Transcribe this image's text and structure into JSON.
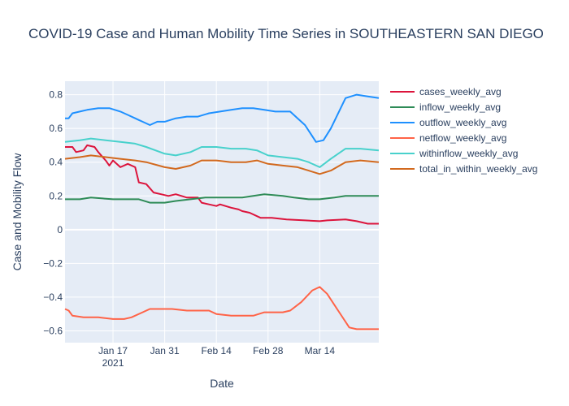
{
  "chart_data": {
    "type": "line",
    "title": "COVID-19 Case and Human Mobility Time Series in SOUTHEASTERN SAN DIEGO",
    "xlabel": "Date",
    "ylabel": "Case and Mobility Flow",
    "x_start": "2021-01-04",
    "x_end": "2021-03-30",
    "xticks": [
      {
        "date": "2021-01-17",
        "label": "Jan 17",
        "sublabel": "2021"
      },
      {
        "date": "2021-01-31",
        "label": "Jan 31",
        "sublabel": ""
      },
      {
        "date": "2021-02-14",
        "label": "Feb 14",
        "sublabel": ""
      },
      {
        "date": "2021-02-28",
        "label": "Feb 28",
        "sublabel": ""
      },
      {
        "date": "2021-03-14",
        "label": "Mar 14",
        "sublabel": ""
      }
    ],
    "ylim": [
      -0.67,
      0.88
    ],
    "yticks": [
      -0.6,
      -0.4,
      -0.2,
      0,
      0.2,
      0.4,
      0.6,
      0.8
    ],
    "ytick_labels": [
      "−0.6",
      "−0.4",
      "−0.2",
      "0",
      "0.2",
      "0.4",
      "0.6",
      "0.8"
    ],
    "grid": true,
    "legend_position": "right",
    "series": [
      {
        "name": "cases_weekly_avg",
        "color": "#dc143c",
        "points": [
          [
            "2021-01-04",
            0.49
          ],
          [
            "2021-01-06",
            0.49
          ],
          [
            "2021-01-07",
            0.46
          ],
          [
            "2021-01-09",
            0.47
          ],
          [
            "2021-01-10",
            0.5
          ],
          [
            "2021-01-12",
            0.49
          ],
          [
            "2021-01-13",
            0.46
          ],
          [
            "2021-01-15",
            0.41
          ],
          [
            "2021-01-16",
            0.38
          ],
          [
            "2021-01-17",
            0.41
          ],
          [
            "2021-01-19",
            0.37
          ],
          [
            "2021-01-21",
            0.39
          ],
          [
            "2021-01-23",
            0.37
          ],
          [
            "2021-01-24",
            0.28
          ],
          [
            "2021-01-26",
            0.27
          ],
          [
            "2021-01-28",
            0.22
          ],
          [
            "2021-01-30",
            0.21
          ],
          [
            "2021-02-01",
            0.2
          ],
          [
            "2021-02-03",
            0.21
          ],
          [
            "2021-02-06",
            0.19
          ],
          [
            "2021-02-09",
            0.19
          ],
          [
            "2021-02-10",
            0.16
          ],
          [
            "2021-02-12",
            0.15
          ],
          [
            "2021-02-14",
            0.14
          ],
          [
            "2021-02-15",
            0.15
          ],
          [
            "2021-02-18",
            0.13
          ],
          [
            "2021-02-20",
            0.12
          ],
          [
            "2021-02-21",
            0.11
          ],
          [
            "2021-02-23",
            0.1
          ],
          [
            "2021-02-26",
            0.07
          ],
          [
            "2021-03-01",
            0.07
          ],
          [
            "2021-03-05",
            0.06
          ],
          [
            "2021-03-10",
            0.055
          ],
          [
            "2021-03-14",
            0.05
          ],
          [
            "2021-03-16",
            0.055
          ],
          [
            "2021-03-21",
            0.06
          ],
          [
            "2021-03-24",
            0.05
          ],
          [
            "2021-03-27",
            0.035
          ],
          [
            "2021-03-30",
            0.035
          ]
        ]
      },
      {
        "name": "inflow_weekly_avg",
        "color": "#2e8b57",
        "points": [
          [
            "2021-01-04",
            0.18
          ],
          [
            "2021-01-08",
            0.18
          ],
          [
            "2021-01-11",
            0.19
          ],
          [
            "2021-01-17",
            0.18
          ],
          [
            "2021-01-20",
            0.18
          ],
          [
            "2021-01-24",
            0.18
          ],
          [
            "2021-01-27",
            0.16
          ],
          [
            "2021-01-31",
            0.16
          ],
          [
            "2021-02-03",
            0.17
          ],
          [
            "2021-02-07",
            0.18
          ],
          [
            "2021-02-11",
            0.19
          ],
          [
            "2021-02-15",
            0.19
          ],
          [
            "2021-02-21",
            0.19
          ],
          [
            "2021-02-24",
            0.2
          ],
          [
            "2021-02-27",
            0.21
          ],
          [
            "2021-03-04",
            0.2
          ],
          [
            "2021-03-07",
            0.19
          ],
          [
            "2021-03-11",
            0.18
          ],
          [
            "2021-03-14",
            0.18
          ],
          [
            "2021-03-18",
            0.19
          ],
          [
            "2021-03-21",
            0.2
          ],
          [
            "2021-03-24",
            0.2
          ],
          [
            "2021-03-30",
            0.2
          ]
        ]
      },
      {
        "name": "outflow_weekly_avg",
        "color": "#1e90ff",
        "points": [
          [
            "2021-01-04",
            0.66
          ],
          [
            "2021-01-05",
            0.66
          ],
          [
            "2021-01-06",
            0.69
          ],
          [
            "2021-01-08",
            0.7
          ],
          [
            "2021-01-10",
            0.71
          ],
          [
            "2021-01-13",
            0.72
          ],
          [
            "2021-01-16",
            0.72
          ],
          [
            "2021-01-19",
            0.7
          ],
          [
            "2021-01-21",
            0.68
          ],
          [
            "2021-01-23",
            0.66
          ],
          [
            "2021-01-24",
            0.65
          ],
          [
            "2021-01-25",
            0.64
          ],
          [
            "2021-01-27",
            0.62
          ],
          [
            "2021-01-29",
            0.64
          ],
          [
            "2021-01-31",
            0.64
          ],
          [
            "2021-02-03",
            0.66
          ],
          [
            "2021-02-06",
            0.67
          ],
          [
            "2021-02-09",
            0.67
          ],
          [
            "2021-02-12",
            0.69
          ],
          [
            "2021-02-15",
            0.7
          ],
          [
            "2021-02-18",
            0.71
          ],
          [
            "2021-02-21",
            0.72
          ],
          [
            "2021-02-24",
            0.72
          ],
          [
            "2021-02-27",
            0.71
          ],
          [
            "2021-03-02",
            0.7
          ],
          [
            "2021-03-06",
            0.7
          ],
          [
            "2021-03-08",
            0.66
          ],
          [
            "2021-03-10",
            0.62
          ],
          [
            "2021-03-13",
            0.52
          ],
          [
            "2021-03-15",
            0.53
          ],
          [
            "2021-03-17",
            0.6
          ],
          [
            "2021-03-21",
            0.78
          ],
          [
            "2021-03-24",
            0.8
          ],
          [
            "2021-03-27",
            0.79
          ],
          [
            "2021-03-30",
            0.78
          ]
        ]
      },
      {
        "name": "netflow_weekly_avg",
        "color": "#ff6347",
        "points": [
          [
            "2021-01-04",
            -0.47
          ],
          [
            "2021-01-05",
            -0.48
          ],
          [
            "2021-01-06",
            -0.51
          ],
          [
            "2021-01-09",
            -0.52
          ],
          [
            "2021-01-13",
            -0.52
          ],
          [
            "2021-01-17",
            -0.53
          ],
          [
            "2021-01-20",
            -0.53
          ],
          [
            "2021-01-22",
            -0.52
          ],
          [
            "2021-01-25",
            -0.49
          ],
          [
            "2021-01-27",
            -0.47
          ],
          [
            "2021-01-30",
            -0.47
          ],
          [
            "2021-02-02",
            -0.47
          ],
          [
            "2021-02-06",
            -0.48
          ],
          [
            "2021-02-10",
            -0.48
          ],
          [
            "2021-02-12",
            -0.48
          ],
          [
            "2021-02-14",
            -0.5
          ],
          [
            "2021-02-18",
            -0.51
          ],
          [
            "2021-02-22",
            -0.51
          ],
          [
            "2021-02-24",
            -0.51
          ],
          [
            "2021-02-27",
            -0.49
          ],
          [
            "2021-03-01",
            -0.49
          ],
          [
            "2021-03-04",
            -0.49
          ],
          [
            "2021-03-06",
            -0.48
          ],
          [
            "2021-03-09",
            -0.43
          ],
          [
            "2021-03-12",
            -0.36
          ],
          [
            "2021-03-14",
            -0.34
          ],
          [
            "2021-03-16",
            -0.38
          ],
          [
            "2021-03-19",
            -0.48
          ],
          [
            "2021-03-22",
            -0.58
          ],
          [
            "2021-03-24",
            -0.59
          ],
          [
            "2021-03-27",
            -0.59
          ],
          [
            "2021-03-30",
            -0.59
          ]
        ]
      },
      {
        "name": "withinflow_weekly_avg",
        "color": "#48d1cc",
        "points": [
          [
            "2021-01-04",
            0.52
          ],
          [
            "2021-01-08",
            0.53
          ],
          [
            "2021-01-11",
            0.54
          ],
          [
            "2021-01-15",
            0.53
          ],
          [
            "2021-01-19",
            0.52
          ],
          [
            "2021-01-23",
            0.51
          ],
          [
            "2021-01-26",
            0.49
          ],
          [
            "2021-01-31",
            0.45
          ],
          [
            "2021-02-03",
            0.44
          ],
          [
            "2021-02-07",
            0.46
          ],
          [
            "2021-02-10",
            0.49
          ],
          [
            "2021-02-14",
            0.49
          ],
          [
            "2021-02-18",
            0.48
          ],
          [
            "2021-02-22",
            0.48
          ],
          [
            "2021-02-25",
            0.47
          ],
          [
            "2021-02-28",
            0.44
          ],
          [
            "2021-03-04",
            0.43
          ],
          [
            "2021-03-08",
            0.42
          ],
          [
            "2021-03-11",
            0.4
          ],
          [
            "2021-03-14",
            0.37
          ],
          [
            "2021-03-17",
            0.42
          ],
          [
            "2021-03-21",
            0.48
          ],
          [
            "2021-03-25",
            0.48
          ],
          [
            "2021-03-30",
            0.47
          ]
        ]
      },
      {
        "name": "total_in_within_weekly_avg",
        "color": "#d2691e",
        "points": [
          [
            "2021-01-04",
            0.42
          ],
          [
            "2021-01-08",
            0.43
          ],
          [
            "2021-01-11",
            0.44
          ],
          [
            "2021-01-15",
            0.43
          ],
          [
            "2021-01-19",
            0.42
          ],
          [
            "2021-01-23",
            0.41
          ],
          [
            "2021-01-26",
            0.4
          ],
          [
            "2021-01-31",
            0.37
          ],
          [
            "2021-02-03",
            0.36
          ],
          [
            "2021-02-07",
            0.38
          ],
          [
            "2021-02-10",
            0.41
          ],
          [
            "2021-02-14",
            0.41
          ],
          [
            "2021-02-18",
            0.4
          ],
          [
            "2021-02-22",
            0.4
          ],
          [
            "2021-02-25",
            0.41
          ],
          [
            "2021-02-28",
            0.39
          ],
          [
            "2021-03-04",
            0.38
          ],
          [
            "2021-03-08",
            0.37
          ],
          [
            "2021-03-11",
            0.35
          ],
          [
            "2021-03-14",
            0.33
          ],
          [
            "2021-03-17",
            0.35
          ],
          [
            "2021-03-21",
            0.4
          ],
          [
            "2021-03-25",
            0.41
          ],
          [
            "2021-03-30",
            0.4
          ]
        ]
      }
    ]
  }
}
